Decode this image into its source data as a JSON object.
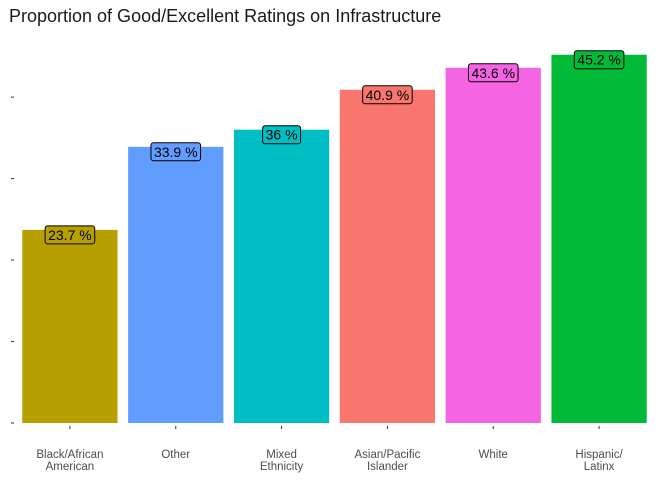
{
  "chart_data": {
    "type": "bar",
    "title": "Proportion of Good/Excellent Ratings on Infrastructure",
    "xlabel": "",
    "ylabel": "",
    "categories": [
      [
        "Black/African",
        "American"
      ],
      [
        "Other"
      ],
      [
        "Mixed",
        "Ethnicity"
      ],
      [
        "Asian/Pacific",
        "Islander"
      ],
      [
        "White"
      ],
      [
        "Hispanic/",
        "Latinx"
      ]
    ],
    "values": [
      23.7,
      33.9,
      36.0,
      40.9,
      43.6,
      45.2
    ],
    "data_labels": [
      "23.7 %",
      "33.9 %",
      "36 %",
      "40.9 %",
      "43.6 %",
      "45.2 %"
    ],
    "colors": [
      "#B79F00",
      "#619CFF",
      "#00BFC4",
      "#F8766D",
      "#F564E3",
      "#00BA38"
    ],
    "ylim": [
      0,
      47.5
    ],
    "y_ticks": [
      0,
      10,
      20,
      30,
      40
    ],
    "y_tick_labels_visible": false,
    "grid": false,
    "legend": "none"
  }
}
